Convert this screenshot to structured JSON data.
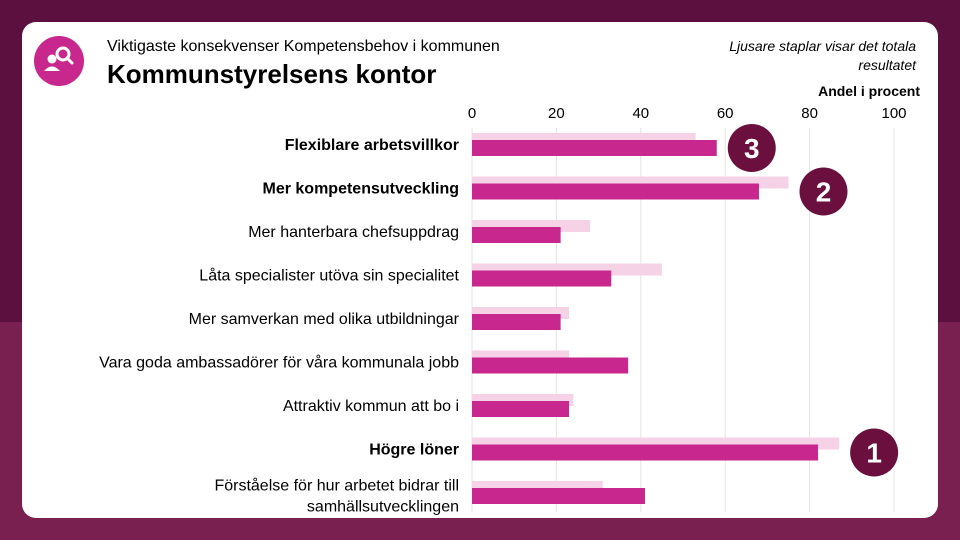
{
  "header": {
    "subtitle": "Viktigaste konsekvenser Kompetensbehov i kommunen",
    "title": "Kommunstyrelsens kontor",
    "note": "Ljusare staplar visar det totala resultatet",
    "logo_icon": "people-search-icon"
  },
  "colors": {
    "background": "#5c1040",
    "bar_main": "#c8278e",
    "bar_total": "#f6d2e6",
    "badge": "#6b0f3f"
  },
  "chart_data": {
    "type": "bar",
    "orientation": "horizontal",
    "xlabel": "Andel i procent",
    "xlim": [
      0,
      100
    ],
    "xticks": [
      0,
      20,
      40,
      60,
      80,
      100
    ],
    "grid": true,
    "categories": [
      "Flexiblare arbetsvillkor",
      "Mer kompetensutveckling",
      "Mer hanterbara chefsuppdrag",
      "Låta specialister utöva sin specialitet",
      "Mer samverkan med olika utbildningar",
      "Vara goda ambassadörer för våra kommunala jobb",
      "Attraktiv kommun att bo i",
      "Högre löner",
      "Förståelse för hur arbetet bidrar till samhällsutvecklingen"
    ],
    "bold_categories": [
      0,
      1,
      7
    ],
    "series": [
      {
        "values": [
          53,
          75,
          28,
          45,
          23,
          23,
          24,
          87,
          31
        ]
      },
      {
        "values": [
          58,
          68,
          21,
          33,
          21,
          37,
          23,
          82,
          41
        ]
      }
    ],
    "rank_labels": [
      {
        "category": 0,
        "label": "3"
      },
      {
        "category": 1,
        "label": "2"
      },
      {
        "category": 7,
        "label": "1"
      }
    ]
  }
}
